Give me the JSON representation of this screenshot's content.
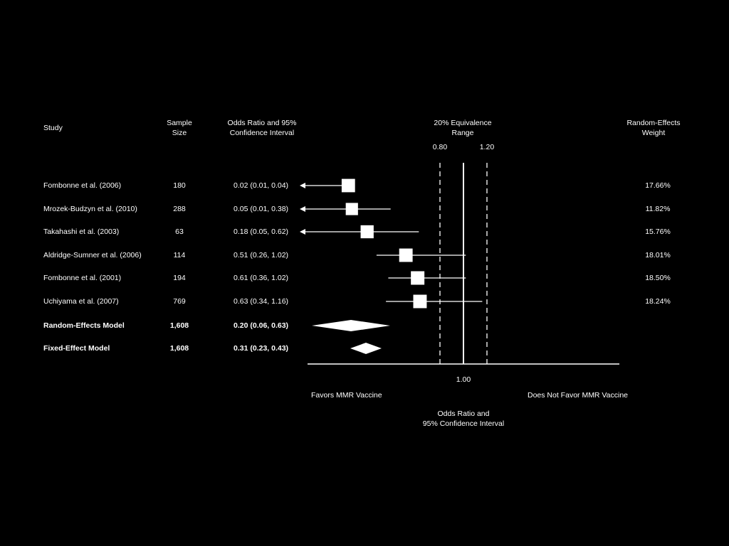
{
  "headers": {
    "study": "Study",
    "sample_size_line1": "Sample",
    "sample_size_line2": "Size",
    "or_ci_line1": "Odds Ratio and 95%",
    "or_ci_line2": "Confidence Interval",
    "equiv_line1": "20% Equivalence",
    "equiv_line2": "Range",
    "weight_line1": "Random-Effects",
    "weight_line2": "Weight"
  },
  "footer": {
    "favors_left": "Favors MMR Vaccine",
    "favors_right": "Does Not Favor MMR Vaccine",
    "axis_title_line1": "Odds Ratio and",
    "axis_title_line2": "95% Confidence Interval"
  },
  "chart_data": {
    "type": "forest",
    "reference_line": {
      "value": 1.0,
      "label": "1.00"
    },
    "equivalence_range": {
      "low": 0.8,
      "high": 1.2,
      "low_label": "0.80",
      "high_label": "1.20"
    },
    "studies": [
      {
        "study": "Fombonne et al. (2006)",
        "n": "180",
        "ci_text": "0.02 (0.01, 0.04)",
        "or": 0.02,
        "low": 0.01,
        "high": 0.04,
        "weight": "17.66%",
        "weight_value": 17.66,
        "arrow_left": true
      },
      {
        "study": "Mrozek-Budzyn et al. (2010)",
        "n": "288",
        "ci_text": "0.05 (0.01, 0.38)",
        "or": 0.05,
        "low": 0.01,
        "high": 0.38,
        "weight": "11.82%",
        "weight_value": 11.82,
        "arrow_left": true
      },
      {
        "study": "Takahashi et al. (2003)",
        "n": "63",
        "ci_text": "0.18 (0.05, 0.62)",
        "or": 0.18,
        "low": 0.05,
        "high": 0.62,
        "weight": "15.76%",
        "weight_value": 15.76,
        "arrow_left": true
      },
      {
        "study": "Aldridge-Sumner et al. (2006)",
        "n": "114",
        "ci_text": "0.51 (0.26, 1.02)",
        "or": 0.51,
        "low": 0.26,
        "high": 1.02,
        "weight": "18.01%",
        "weight_value": 18.01,
        "arrow_left": false
      },
      {
        "study": "Fombonne et al. (2001)",
        "n": "194",
        "ci_text": "0.61 (0.36, 1.02)",
        "or": 0.61,
        "low": 0.36,
        "high": 1.02,
        "weight": "18.50%",
        "weight_value": 18.5,
        "arrow_left": false
      },
      {
        "study": "Uchiyama et al. (2007)",
        "n": "769",
        "ci_text": "0.63 (0.34, 1.16)",
        "or": 0.63,
        "low": 0.34,
        "high": 1.16,
        "weight": "18.24%",
        "weight_value": 18.24,
        "arrow_left": false
      }
    ],
    "summaries": [
      {
        "study": "Random-Effects Model",
        "n": "1,608",
        "ci_text": "0.20 (0.06, 0.63)",
        "or": 0.2,
        "low": 0.06,
        "high": 0.63
      },
      {
        "study": "Fixed-Effect Model",
        "n": "1,608",
        "ci_text": "0.31 (0.23, 0.43)",
        "or": 0.31,
        "low": 0.23,
        "high": 0.43
      }
    ],
    "colors": {
      "background": "#000000",
      "foreground": "#ffffff"
    }
  }
}
